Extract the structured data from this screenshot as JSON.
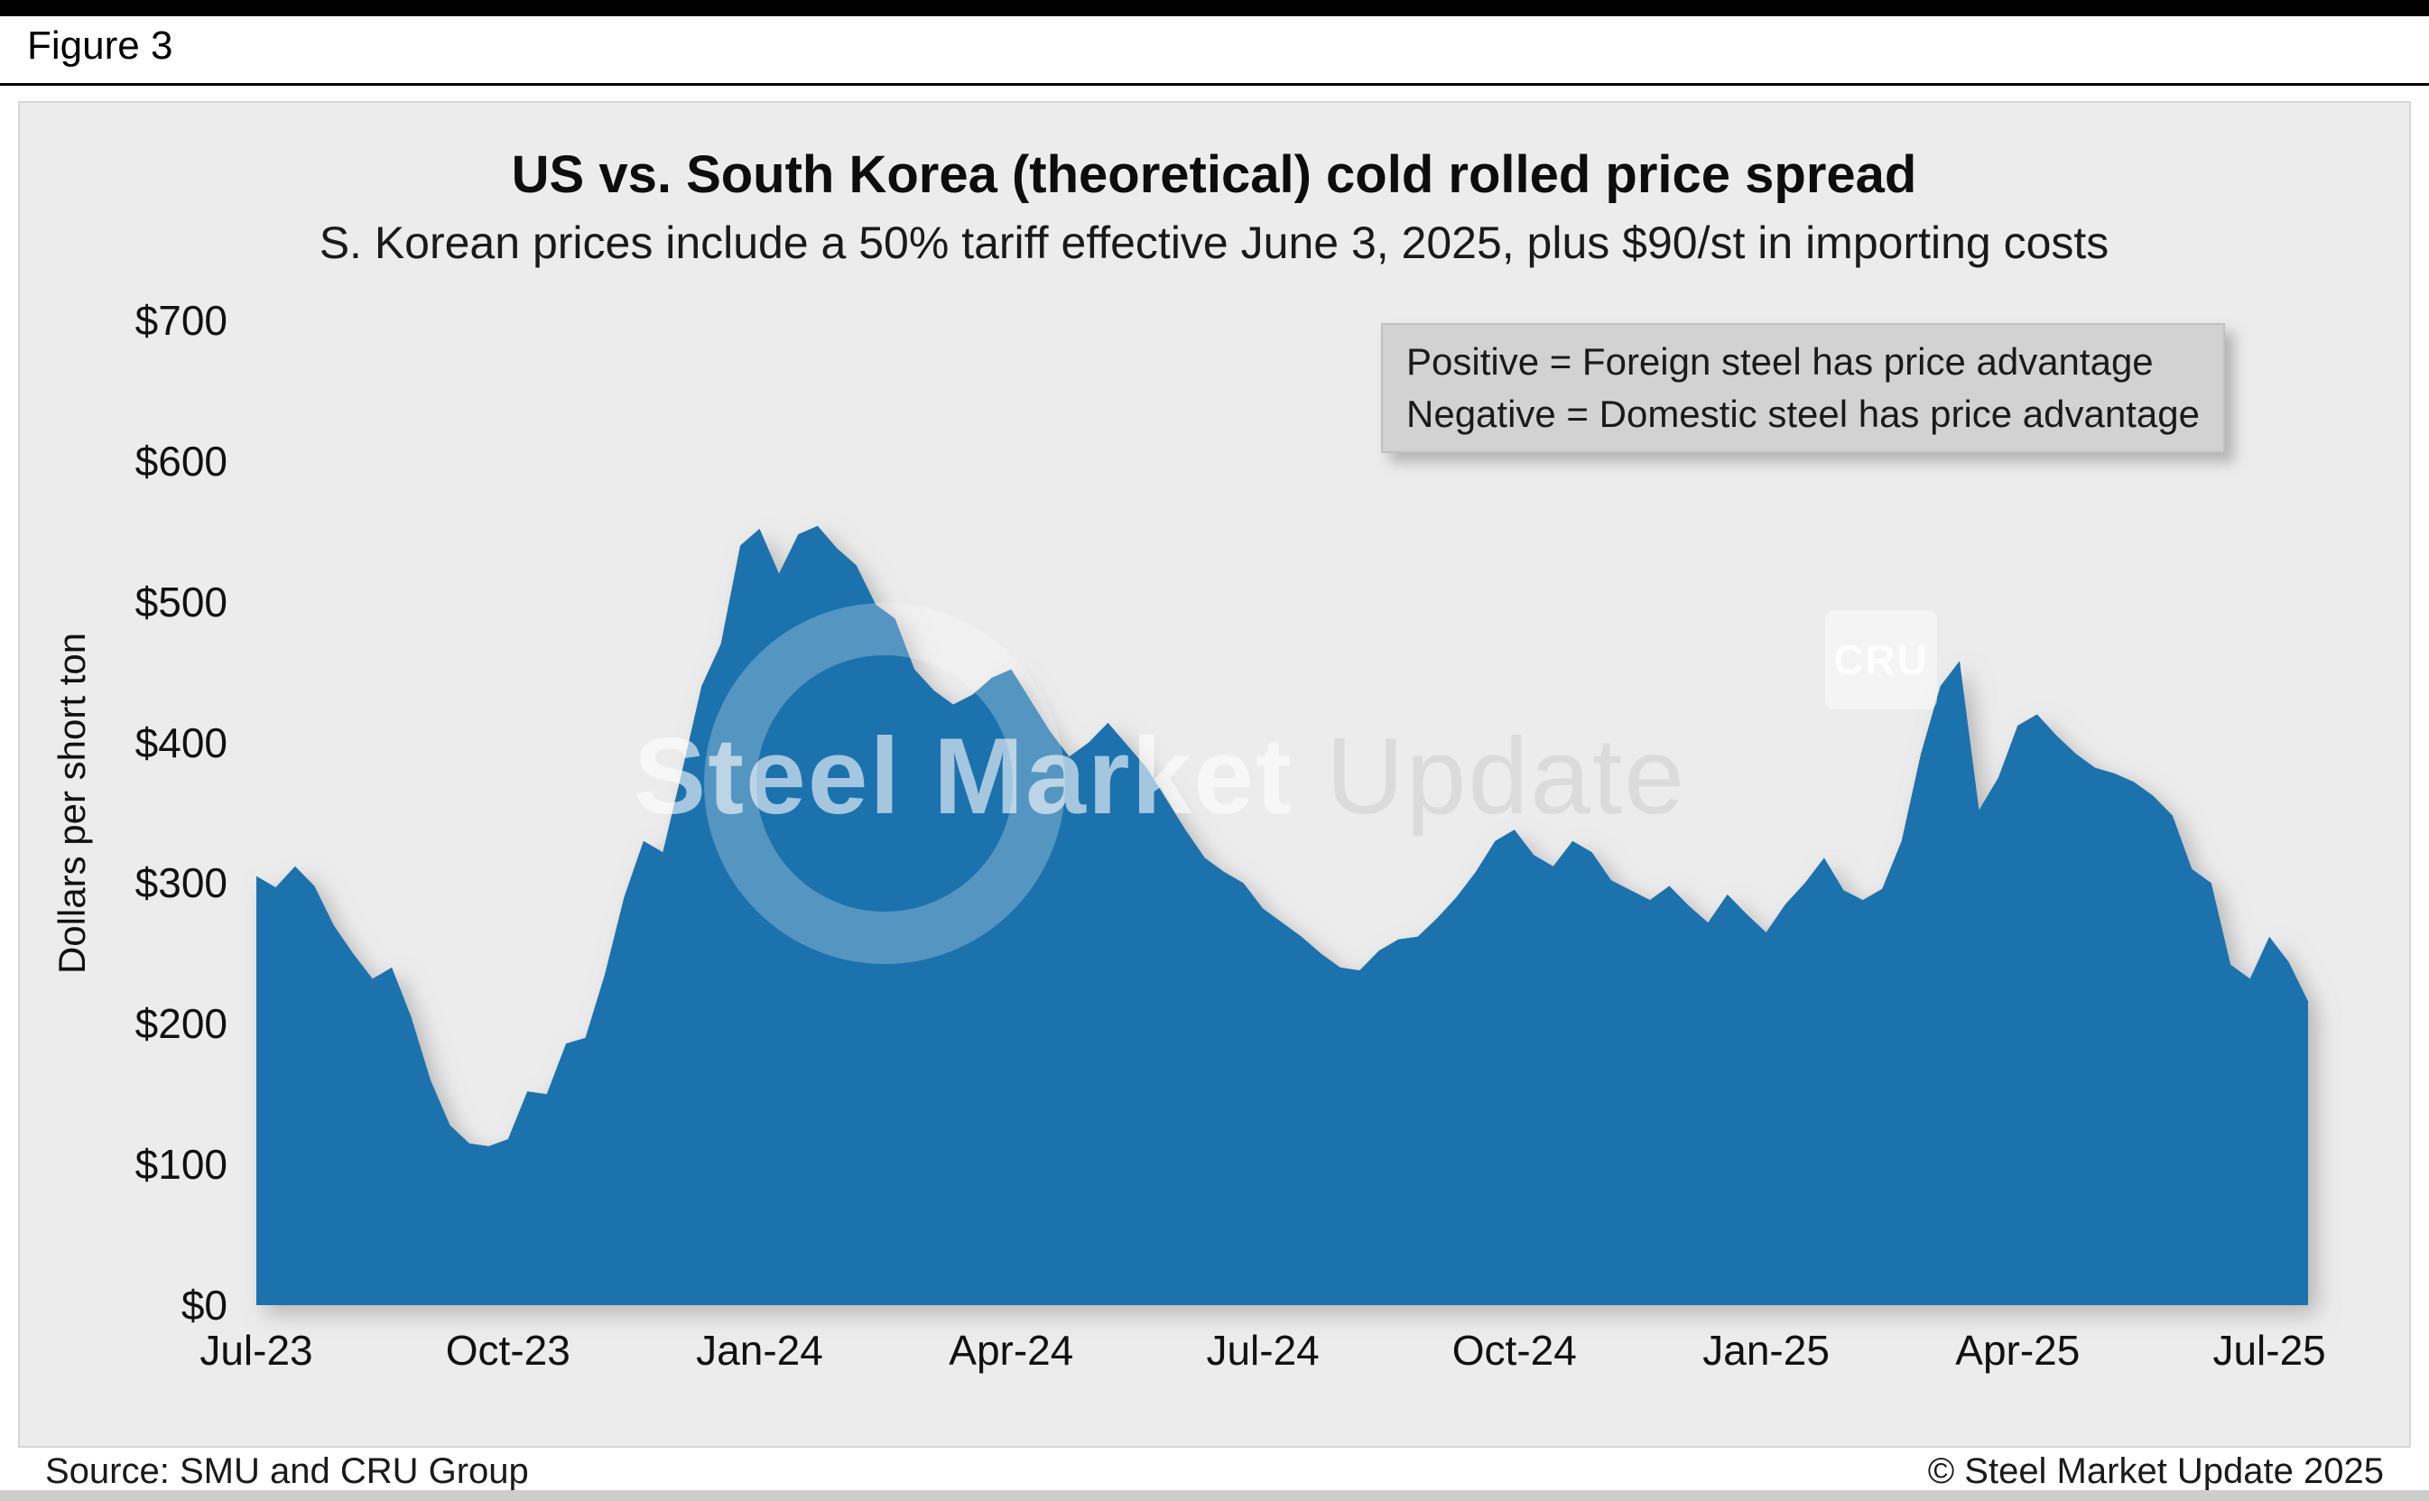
{
  "figure_label": "Figure 3",
  "title": "US vs. South Korea (theoretical) cold rolled price spread",
  "subtitle": "S. Korean prices include a 50% tariff effective June 3, 2025, plus $90/st in importing costs",
  "legend_note": {
    "line1": "Positive = Foreign steel has price advantage",
    "line2": "Negative = Domestic steel has price advantage"
  },
  "watermark": {
    "bold": "Steel Market",
    "light": "Update",
    "logo": "CRU"
  },
  "footer": {
    "source": "Source: SMU and CRU Group",
    "copyright": "© Steel Market Update 2025"
  },
  "colors": {
    "area": "#1c72ad",
    "panel_bg": "#ececec",
    "legend_bg": "#d2d2d2",
    "shadow": "#8a8a8a"
  },
  "chart_data": {
    "type": "area",
    "title": "US vs. South Korea (theoretical) cold rolled price spread",
    "subtitle": "S. Korean prices include a 50% tariff effective June 3, 2025, plus $90/st in importing costs",
    "xlabel": "",
    "ylabel": "Dollars per short ton",
    "ylim": [
      0,
      700
    ],
    "yticks": [
      0,
      100,
      200,
      300,
      400,
      500,
      600,
      700
    ],
    "ytick_labels": [
      "$0",
      "$100",
      "$200",
      "$300",
      "$400",
      "$500",
      "$600",
      "$700"
    ],
    "x_unit": "weeks since Jul-2023",
    "xticks": [
      0,
      13,
      26,
      39,
      52,
      65,
      78,
      91,
      104
    ],
    "xtick_labels": [
      "Jul-23",
      "Oct-23",
      "Jan-24",
      "Apr-24",
      "Jul-24",
      "Oct-24",
      "Jan-25",
      "Apr-25",
      "Jul-25"
    ],
    "grid": false,
    "legend_position": "top-right",
    "series_name": "US minus South Korea cold rolled price spread ($/short ton)",
    "values": [
      305,
      297,
      312,
      298,
      270,
      250,
      232,
      240,
      205,
      160,
      128,
      115,
      113,
      118,
      152,
      150,
      186,
      190,
      235,
      290,
      330,
      322,
      380,
      440,
      470,
      540,
      552,
      520,
      548,
      554,
      538,
      526,
      498,
      488,
      452,
      437,
      427,
      434,
      446,
      452,
      430,
      408,
      390,
      400,
      414,
      398,
      382,
      360,
      338,
      318,
      308,
      300,
      282,
      272,
      262,
      250,
      240,
      238,
      252,
      260,
      262,
      275,
      290,
      308,
      330,
      338,
      320,
      312,
      330,
      322,
      302,
      295,
      288,
      298,
      284,
      272,
      292,
      278,
      265,
      285,
      300,
      318,
      295,
      288,
      296,
      330,
      392,
      440,
      458,
      352,
      375,
      412,
      420,
      405,
      392,
      382,
      378,
      372,
      362,
      348,
      310,
      300,
      242,
      232,
      262,
      244,
      216
    ]
  }
}
